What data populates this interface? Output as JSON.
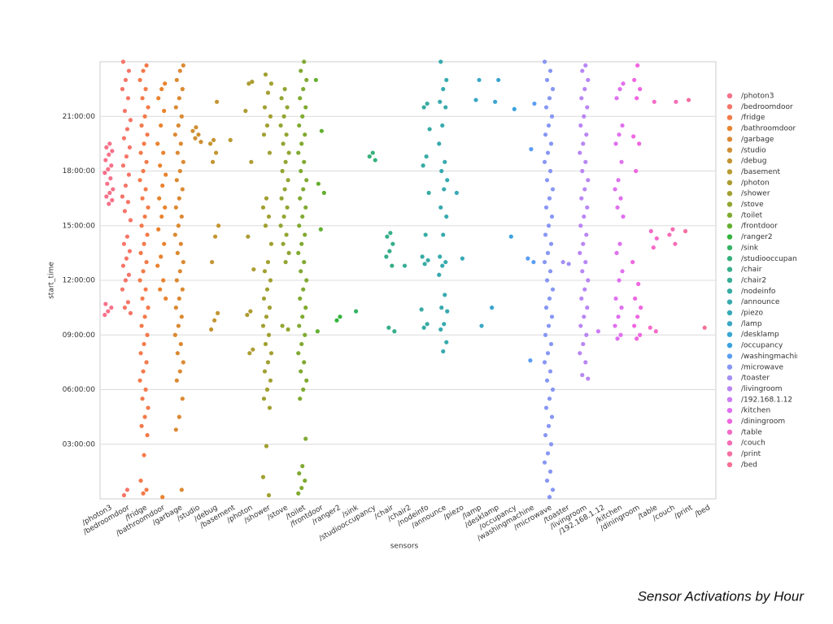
{
  "chart_data": {
    "type": "strip",
    "xlabel": "sensors",
    "ylabel": "start_time",
    "caption": "Sensor Activations by Hour",
    "ylim": [
      0,
      24
    ],
    "yticks": [
      {
        "value": 3,
        "label": "03:00:00"
      },
      {
        "value": 6,
        "label": "06:00:00"
      },
      {
        "value": 9,
        "label": "09:00:00"
      },
      {
        "value": 12,
        "label": "12:00:00"
      },
      {
        "value": 15,
        "label": "15:00:00"
      },
      {
        "value": 18,
        "label": "18:00:00"
      },
      {
        "value": 21,
        "label": "21:00:00"
      }
    ],
    "grid": true,
    "legend": "right",
    "series": [
      {
        "name": "/photon3",
        "color": "#f77189",
        "values": [
          10.1,
          10.3,
          10.5,
          10.7,
          16.2,
          16.4,
          16.6,
          16.8,
          17.0,
          17.3,
          17.6,
          17.9,
          18.1,
          18.3,
          18.6,
          18.9,
          19.1,
          19.3,
          19.5
        ]
      },
      {
        "name": "/bedroomdoor",
        "color": "#f67568",
        "values": [
          0.2,
          0.5,
          10.2,
          10.5,
          10.8,
          11.5,
          12.0,
          12.3,
          12.8,
          13.2,
          13.6,
          14.0,
          14.4,
          15.3,
          15.8,
          16.3,
          16.6,
          17.2,
          17.8,
          18.3,
          18.8,
          19.3,
          19.8,
          20.3,
          20.8,
          21.3,
          22.0,
          22.5,
          23.0,
          23.5,
          24
        ]
      },
      {
        "name": "/fridge",
        "color": "#f47a4a",
        "values": [
          0.3,
          0.5,
          1.0,
          2.4,
          3.5,
          4.0,
          4.5,
          5.0,
          5.5,
          6.0,
          6.5,
          7.0,
          7.5,
          8.0,
          8.5,
          9.0,
          9.5,
          10.0,
          10.5,
          11.0,
          11.5,
          12.0,
          12.5,
          13.0,
          13.5,
          14.0,
          14.5,
          15.0,
          15.5,
          16.0,
          16.5,
          17.0,
          17.5,
          18.0,
          18.5,
          19.0,
          19.5,
          20.0,
          20.5,
          21.0,
          21.5,
          22.0,
          22.5,
          23.0,
          23.5,
          23.8
        ]
      },
      {
        "name": "/bathroomdoor",
        "color": "#e9832f",
        "values": [
          0.1,
          11.0,
          11.5,
          12.0,
          12.8,
          13.3,
          14.0,
          14.8,
          15.5,
          16.0,
          16.5,
          17.2,
          17.8,
          18.3,
          19.0,
          19.5,
          20.5,
          21.3,
          22.0,
          22.5,
          22.8
        ]
      },
      {
        "name": "/garbage",
        "color": "#dc8932",
        "values": [
          0.5,
          3.8,
          4.5,
          5.5,
          6.5,
          7.0,
          7.5,
          8.0,
          8.5,
          9.0,
          9.5,
          10.0,
          10.5,
          11.0,
          11.5,
          12.0,
          12.5,
          13.0,
          13.5,
          14.0,
          14.5,
          15.0,
          15.5,
          16.0,
          16.5,
          17.0,
          17.5,
          18.0,
          18.5,
          19.0,
          19.5,
          20.0,
          20.5,
          21.0,
          21.5,
          22.0,
          22.5,
          23.0,
          23.5,
          23.8
        ]
      },
      {
        "name": "/studio",
        "color": "#cf8f32",
        "values": [
          19.6,
          19.8,
          20.0,
          20.2,
          20.4
        ]
      },
      {
        "name": "/debug",
        "color": "#c39532",
        "values": [
          9.3,
          9.8,
          10.2,
          13.0,
          14.4,
          15.0,
          18.5,
          19.0,
          19.5,
          19.7,
          21.8
        ]
      },
      {
        "name": "/basement",
        "color": "#b89a31",
        "values": [
          19.7
        ]
      },
      {
        "name": "/photon",
        "color": "#ad9c31",
        "values": [
          8.0,
          8.2,
          10.1,
          10.3,
          12.6,
          14.4,
          18.5,
          21.3,
          22.8,
          22.9
        ]
      },
      {
        "name": "/shower",
        "color": "#a1a031",
        "values": [
          0.2,
          1.2,
          2.9,
          5.0,
          5.5,
          6.0,
          6.5,
          7.0,
          7.5,
          8.0,
          8.5,
          9.0,
          9.5,
          10.0,
          10.5,
          11.0,
          11.5,
          12.0,
          12.5,
          13.0,
          14.0,
          15.0,
          15.5,
          16.0,
          16.5,
          19.0,
          20.0,
          20.5,
          21.0,
          21.5,
          22.3,
          22.8,
          23.3
        ]
      },
      {
        "name": "/stove",
        "color": "#93a531",
        "values": [
          9.3,
          9.5,
          13.0,
          13.5,
          14.0,
          14.5,
          15.0,
          15.5,
          16.0,
          16.5,
          17.0,
          17.5,
          18.0,
          18.5,
          19.0,
          19.5,
          20.0,
          20.5,
          21.0,
          21.5,
          22.0,
          22.5
        ]
      },
      {
        "name": "/toilet",
        "color": "#80aa31",
        "values": [
          0.3,
          0.6,
          1.0,
          1.4,
          1.8,
          3.3,
          5.5,
          6.0,
          6.5,
          7.0,
          7.5,
          8.0,
          8.5,
          9.0,
          9.5,
          10.0,
          10.5,
          11.0,
          11.5,
          12.0,
          12.5,
          13.0,
          13.5,
          14.0,
          14.5,
          15.0,
          15.5,
          16.0,
          16.5,
          17.0,
          17.5,
          18.0,
          18.5,
          19.0,
          19.5,
          20.0,
          20.5,
          21.0,
          21.5,
          22.0,
          22.5,
          23.0,
          23.5,
          24
        ]
      },
      {
        "name": "/frontdoor",
        "color": "#63b031",
        "values": [
          9.2,
          14.8,
          16.8,
          17.3,
          20.2,
          23.0
        ]
      },
      {
        "name": "/ranger2",
        "color": "#33b43c",
        "values": [
          9.8,
          10.0
        ]
      },
      {
        "name": "/sink",
        "color": "#34b264",
        "values": [
          10.3
        ]
      },
      {
        "name": "/studiooccupancy",
        "color": "#35b07a",
        "values": [
          18.6,
          18.8,
          19.0
        ]
      },
      {
        "name": "/chair",
        "color": "#35ae8a",
        "values": [
          9.2,
          9.4,
          12.8,
          13.3,
          13.6,
          14.0,
          14.4,
          14.6
        ]
      },
      {
        "name": "/chair2",
        "color": "#36ad97",
        "values": [
          12.8
        ]
      },
      {
        "name": "/nodeinfo",
        "color": "#36aba3",
        "values": [
          9.4,
          9.6,
          10.4,
          12.9,
          13.1,
          13.3,
          14.5,
          16.8,
          18.3,
          18.8,
          20.3,
          21.5,
          21.7
        ]
      },
      {
        "name": "/announce",
        "color": "#37aaae",
        "values": [
          8.1,
          8.6,
          9.3,
          9.6,
          10.3,
          10.5,
          11.2,
          12.3,
          12.8,
          13.0,
          13.3,
          14.5,
          15.5,
          16.0,
          17.0,
          17.5,
          18.0,
          18.5,
          19.5,
          20.5,
          21.5,
          21.8,
          22.5,
          23.0,
          24
        ]
      },
      {
        "name": "/piezo",
        "color": "#38a9b8",
        "values": [
          13.2,
          16.8
        ]
      },
      {
        "name": "/lamp",
        "color": "#39a7c3",
        "values": [
          9.5,
          21.9,
          23.0
        ]
      },
      {
        "name": "/desklamp",
        "color": "#3aa5d0",
        "values": [
          10.5,
          21.8,
          23.0
        ]
      },
      {
        "name": "/occupancy",
        "color": "#3ba2e0",
        "values": [
          14.4,
          21.4
        ]
      },
      {
        "name": "/washingmachine",
        "color": "#5a9df3",
        "values": [
          7.6,
          13.0,
          13.2,
          19.2,
          21.7
        ]
      },
      {
        "name": "/microwave",
        "color": "#8797f4",
        "values": [
          0.1,
          0.5,
          1.0,
          1.5,
          2.0,
          2.5,
          3.0,
          3.5,
          4.0,
          4.5,
          5.0,
          5.5,
          6.0,
          6.5,
          7.0,
          7.5,
          8.0,
          8.5,
          9.0,
          9.5,
          10.0,
          10.5,
          11.0,
          11.5,
          12.0,
          12.5,
          13.0,
          13.5,
          14.0,
          14.5,
          15.0,
          15.5,
          16.0,
          16.5,
          17.0,
          17.5,
          18.0,
          18.5,
          19.0,
          19.5,
          20.0,
          20.5,
          21.0,
          21.5,
          22.0,
          22.5,
          23.0,
          23.5,
          24
        ]
      },
      {
        "name": "/toaster",
        "color": "#a48ff4",
        "values": [
          12.9,
          13.0
        ]
      },
      {
        "name": "/livingroom",
        "color": "#b986f4",
        "values": [
          6.6,
          6.8,
          7.5,
          8.0,
          8.5,
          9.0,
          9.5,
          10.0,
          10.5,
          11.0,
          11.5,
          12.0,
          12.5,
          13.0,
          13.5,
          14.0,
          14.5,
          15.0,
          15.5,
          16.0,
          16.5,
          17.0,
          17.5,
          18.0,
          18.5,
          19.0,
          19.5,
          20.0,
          20.5,
          21.0,
          21.5,
          22.0,
          22.5,
          23.0,
          23.5,
          23.8
        ]
      },
      {
        "name": "/192.168.1.12",
        "color": "#cd7cf4",
        "values": [
          9.2
        ]
      },
      {
        "name": "/kitchen",
        "color": "#e070ef",
        "values": [
          8.8,
          9.0,
          9.5,
          10.0,
          10.5,
          11.0,
          12.0,
          12.5,
          13.5,
          14.0,
          15.5,
          16.0,
          16.5,
          17.0,
          17.5,
          18.5,
          19.5,
          20.0,
          20.5,
          22.0,
          22.5,
          22.8
        ]
      },
      {
        "name": "/diningroom",
        "color": "#f066e0",
        "values": [
          8.8,
          9.0,
          9.5,
          10.0,
          10.5,
          11.0,
          11.8,
          13.0,
          18.0,
          19.5,
          19.9,
          22.0,
          22.5,
          23.0,
          23.8
        ]
      },
      {
        "name": "/table",
        "color": "#f56bc7",
        "values": [
          9.2,
          9.4,
          13.8,
          14.3,
          14.7,
          21.8
        ]
      },
      {
        "name": "/couch",
        "color": "#f56db5",
        "values": [
          14.0,
          14.5,
          14.8,
          21.8
        ]
      },
      {
        "name": "/print",
        "color": "#f66ea3",
        "values": [
          14.7,
          21.9
        ]
      },
      {
        "name": "/bed",
        "color": "#f77094",
        "values": [
          9.4
        ]
      }
    ]
  }
}
